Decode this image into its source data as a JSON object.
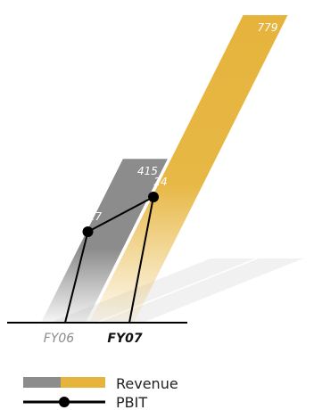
{
  "chart_data": {
    "type": "bar",
    "categories": [
      "FY06",
      "FY07"
    ],
    "series": [
      {
        "name": "Revenue",
        "values": [
          415,
          779
        ]
      },
      {
        "name": "PBIT",
        "values": [
          17,
          24
        ]
      }
    ],
    "value_labels": {
      "revenue": [
        "415",
        "779"
      ],
      "pbit": [
        "17",
        "24"
      ]
    },
    "legend": [
      "Revenue",
      "PBIT"
    ],
    "legend_position": "bottom-left",
    "grid": false,
    "colors": {
      "fy06_bar": "#8c8c8c",
      "fy07_bar": "#e6b43c",
      "fy06_label": "#8c8c8c",
      "fy07_label": "#111111",
      "pbit_line": "#000000",
      "baseline": "#000000"
    }
  }
}
